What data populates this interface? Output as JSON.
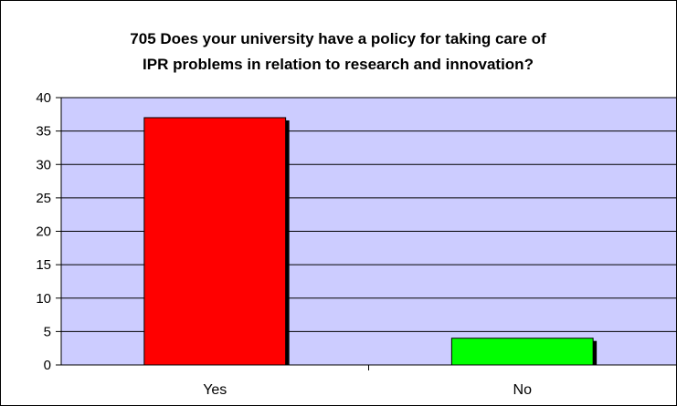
{
  "chart_data": {
    "type": "bar",
    "title": [
      "705 Does your university have a policy for taking care of",
      "IPR problems in relation to research and innovation?"
    ],
    "xlabel": "",
    "ylabel": "",
    "categories": [
      "Yes",
      "No"
    ],
    "values": [
      37,
      4
    ],
    "ylim": [
      0,
      40
    ],
    "yticks": [
      "0",
      "5",
      "10",
      "15",
      "20",
      "25",
      "30",
      "35",
      "40"
    ],
    "grid": true,
    "legend": "none",
    "colors": {
      "plot_background": "#ccccff",
      "bars": [
        "#ff0000",
        "#00ff00"
      ],
      "bar_shadow": "#000000",
      "grid": "#000000"
    }
  }
}
